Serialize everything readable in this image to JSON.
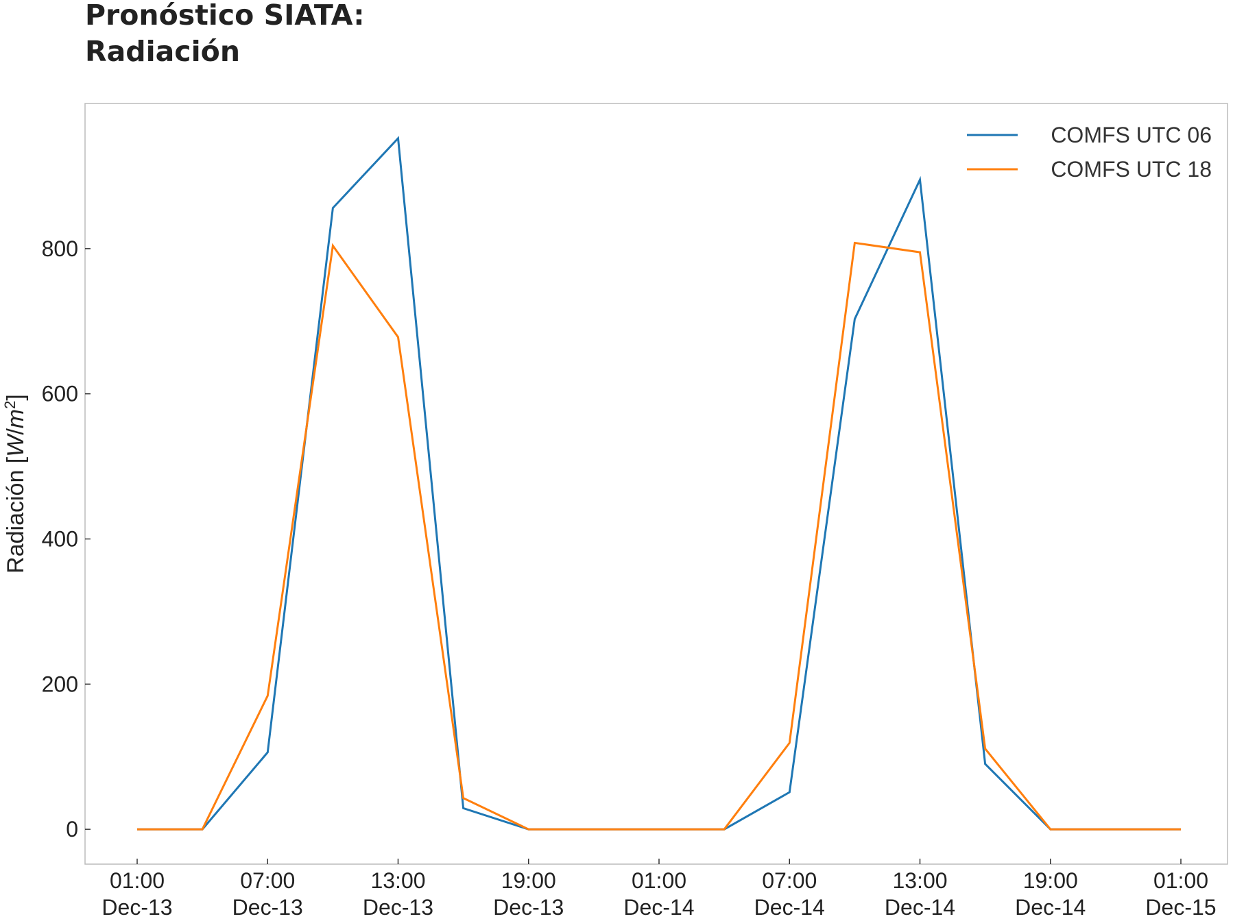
{
  "chart_data": {
    "type": "line",
    "title": [
      "Pronóstico SIATA:",
      "Radiación"
    ],
    "ylabel": {
      "text": "Radiación [",
      "unit_w": "W",
      "unit_slash": "/",
      "unit_m": "m",
      "unit_exp": "2",
      "close": "]"
    },
    "x": [
      "2023-12-13 01:00",
      "2023-12-13 04:00",
      "2023-12-13 07:00",
      "2023-12-13 10:00",
      "2023-12-13 13:00",
      "2023-12-13 16:00",
      "2023-12-13 19:00",
      "2023-12-13 22:00",
      "2023-12-14 01:00",
      "2023-12-14 04:00",
      "2023-12-14 07:00",
      "2023-12-14 10:00",
      "2023-12-14 13:00",
      "2023-12-14 16:00",
      "2023-12-14 19:00",
      "2023-12-14 22:00",
      "2023-12-15 01:00"
    ],
    "xticks": [
      {
        "time": "01:00",
        "date": "Dec-13"
      },
      {
        "time": "07:00",
        "date": "Dec-13"
      },
      {
        "time": "13:00",
        "date": "Dec-13"
      },
      {
        "time": "19:00",
        "date": "Dec-13"
      },
      {
        "time": "01:00",
        "date": "Dec-14"
      },
      {
        "time": "07:00",
        "date": "Dec-14"
      },
      {
        "time": "13:00",
        "date": "Dec-14"
      },
      {
        "time": "19:00",
        "date": "Dec-14"
      },
      {
        "time": "01:00",
        "date": "Dec-15"
      }
    ],
    "yticks": [
      "0",
      "200",
      "400",
      "600",
      "800"
    ],
    "ylim": [
      -48,
      1000
    ],
    "series": [
      {
        "name": "COMFS UTC 06",
        "color": "#1f77b4",
        "values": [
          0,
          0,
          106,
          856,
          952,
          29,
          0,
          0,
          0,
          0,
          51,
          703,
          895,
          90,
          0,
          0,
          0
        ]
      },
      {
        "name": "COMFS UTC 18",
        "color": "#ff7f0e",
        "values": [
          0,
          0,
          184,
          804,
          678,
          43,
          0,
          0,
          0,
          0,
          119,
          808,
          795,
          111,
          0,
          0,
          0
        ]
      }
    ],
    "grid": false,
    "legend": "top-right"
  }
}
